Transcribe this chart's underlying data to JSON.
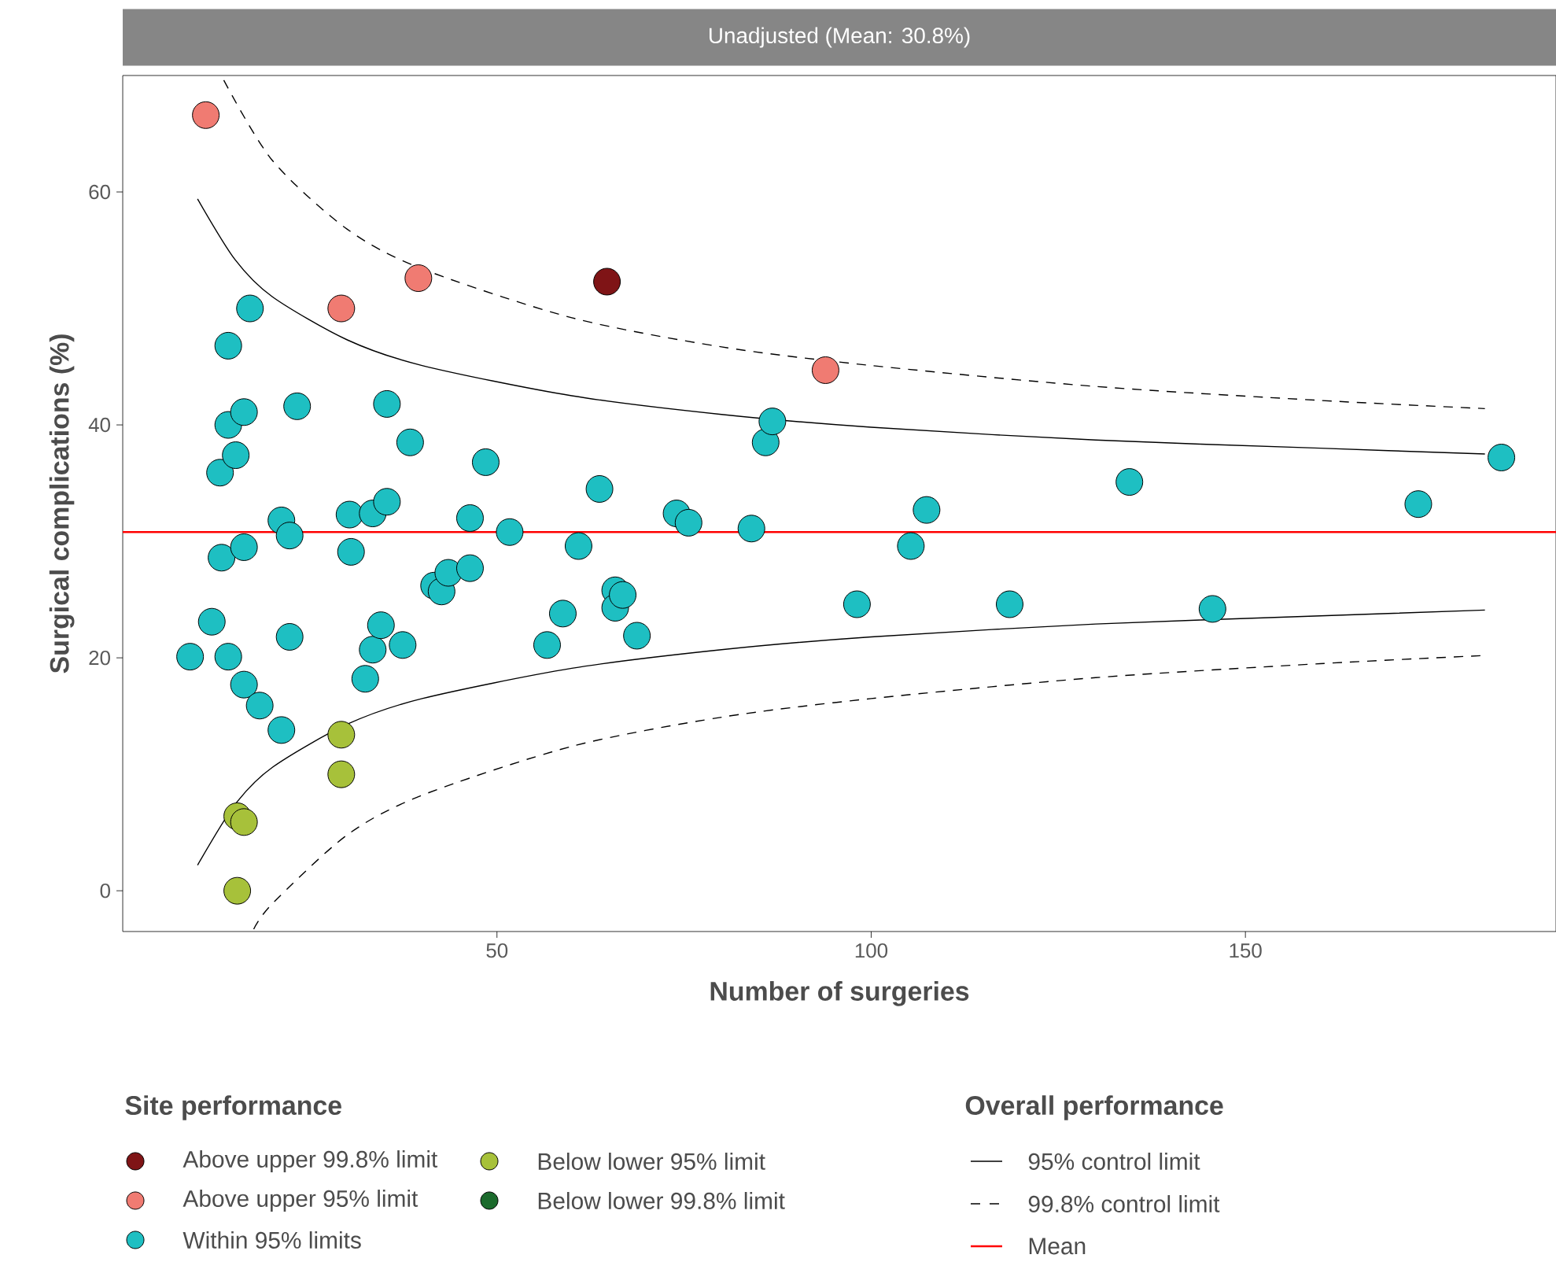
{
  "chart_data": {
    "type": "scatter",
    "title": "Unadjusted (Mean: 30.8%)",
    "xlabel": "Number of surgeries",
    "ylabel": "Surgical complications (%)",
    "legend_title": "Site performance",
    "annotations": [
      "Overall performance"
    ],
    "xlim": [
      0,
      191.5
    ],
    "ylim": [
      -3.5,
      70
    ],
    "xticks": [
      50,
      100,
      150
    ],
    "yticks": [
      0,
      20,
      40,
      60
    ],
    "marker": "circle",
    "legend": "bottom",
    "series": [
      {
        "name": "Above upper 99.8% limit",
        "color": "#7f1416",
        "x": [
          64.7
        ],
        "values": [
          52.3
        ]
      },
      {
        "name": "Above upper 95% limit",
        "color": "#f07b72",
        "x": [
          11.1,
          29.2,
          39.5,
          93.9
        ],
        "values": [
          66.6,
          50.0,
          52.6,
          44.7
        ]
      },
      {
        "name": "Within 95% limits",
        "color": "#1ebfc2",
        "x": [
          9.0,
          11.9,
          13.0,
          13.2,
          14.1,
          14.1,
          14.1,
          15.1,
          16.2,
          16.2,
          16.2,
          17.0,
          18.3,
          21.2,
          22.3,
          21.2,
          22.3,
          23.3,
          30.3,
          30.5,
          32.4,
          33.4,
          33.4,
          34.5,
          35.3,
          35.3,
          37.4,
          38.4,
          41.6,
          42.6,
          43.5,
          46.4,
          46.4,
          48.5,
          51.7,
          56.7,
          58.8,
          60.9,
          63.7,
          65.8,
          65.8,
          66.8,
          68.7,
          74.0,
          75.6,
          84.0,
          85.9,
          86.8,
          98.1,
          105.3,
          107.4,
          118.5,
          134.5,
          145.6,
          173.1,
          184.2
        ],
        "values": [
          20.1,
          23.1,
          35.9,
          28.6,
          46.8,
          40.0,
          20.1,
          37.4,
          41.1,
          29.5,
          17.7,
          50.0,
          15.9,
          31.8,
          30.5,
          13.8,
          21.8,
          41.6,
          32.3,
          29.1,
          18.2,
          32.4,
          20.7,
          22.8,
          41.8,
          33.4,
          21.1,
          38.5,
          26.2,
          25.7,
          27.3,
          27.7,
          32.0,
          36.8,
          30.8,
          21.1,
          23.8,
          29.6,
          34.5,
          25.8,
          24.3,
          25.4,
          21.9,
          32.4,
          31.6,
          31.1,
          38.5,
          40.3,
          24.6,
          29.6,
          32.7,
          24.6,
          35.1,
          24.2,
          33.2,
          37.2
        ]
      },
      {
        "name": "Below lower 95% limit",
        "color": "#a7c13a",
        "x": [
          29.2,
          29.2,
          15.3,
          16.2,
          15.3
        ],
        "values": [
          13.4,
          10.0,
          6.4,
          5.9,
          0.0
        ]
      },
      {
        "name": "Below lower 99.8% limit",
        "color": "#1b6a2c"
      },
      {
        "name": "95% control limit",
        "type": "line",
        "marker": "none",
        "line_style": "solid",
        "color": "#000000",
        "x": [
          10,
          15,
          20,
          30,
          40,
          60,
          80,
          100,
          130,
          160,
          182
        ],
        "values": [
          59.4,
          54.2,
          51.0,
          47.3,
          45.1,
          42.5,
          40.9,
          39.8,
          38.7,
          38.0,
          37.5
        ]
      },
      {
        "type": "line",
        "marker": "none",
        "line_style": "solid",
        "color": "#000000",
        "x": [
          10,
          15,
          20,
          30,
          40,
          60,
          80,
          100,
          130,
          160,
          182
        ],
        "values": [
          2.2,
          7.4,
          10.6,
          14.3,
          16.5,
          19.1,
          20.7,
          21.8,
          22.9,
          23.6,
          24.1
        ]
      },
      {
        "name": "99.8% control limit",
        "type": "line",
        "marker": "none",
        "line_style": "dashed",
        "color": "#000000",
        "x": [
          13.5,
          20,
          30,
          40,
          60,
          80,
          100,
          130,
          160,
          182
        ],
        "values": [
          69.6,
          62.7,
          56.8,
          53.4,
          49.2,
          46.7,
          45.1,
          43.3,
          42.1,
          41.4
        ]
      },
      {
        "type": "line",
        "marker": "none",
        "line_style": "dashed",
        "color": "#000000",
        "x": [
          17.5,
          20,
          30,
          40,
          60,
          80,
          100,
          130,
          160,
          182
        ],
        "values": [
          -3.3,
          -1.1,
          4.8,
          8.2,
          12.4,
          14.9,
          16.5,
          18.3,
          19.5,
          20.2
        ]
      }
    ],
    "ref_lines": [
      {
        "axis": "y",
        "value": 30.8,
        "label": "Mean",
        "color": "#ff0000"
      }
    ]
  }
}
